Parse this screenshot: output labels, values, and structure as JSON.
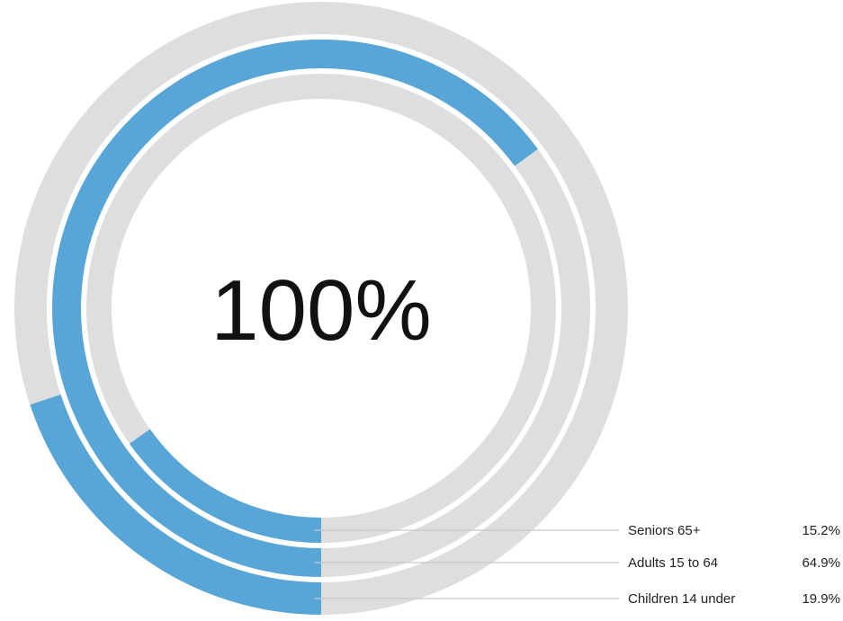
{
  "chart_data": {
    "type": "radial-bar",
    "center_label": "100%",
    "series": [
      {
        "name": "Seniors 65+",
        "value": 15.2,
        "value_label": "15.2%"
      },
      {
        "name": "Adults 15 to 64",
        "value": 64.9,
        "value_label": "64.9%"
      },
      {
        "name": "Children 14 under",
        "value": 19.9,
        "value_label": "19.9%"
      }
    ],
    "max": 100,
    "colors": {
      "fill": "#58a5d8",
      "track": "#dedede",
      "leader": "#c8c8c8"
    },
    "legend_placement": "bottom-right"
  }
}
